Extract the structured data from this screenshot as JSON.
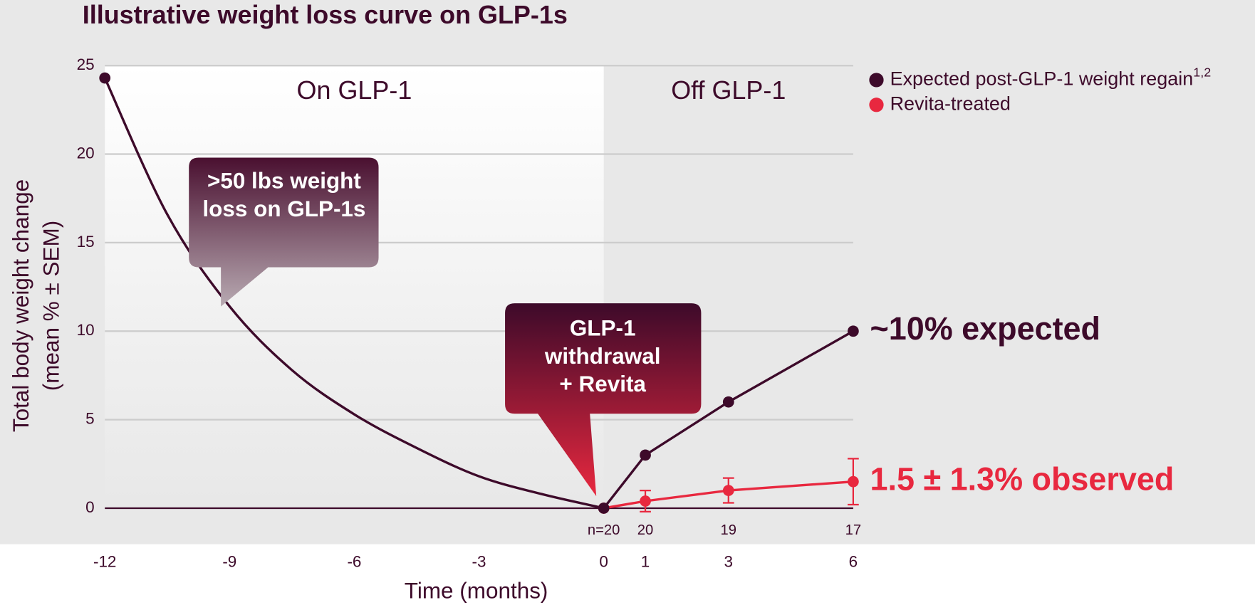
{
  "chart_data": {
    "type": "line",
    "title": "Illustrative weight loss curve on GLP-1s",
    "x_label": "Time (months)",
    "y_label": [
      "Total body weight change",
      "(mean % ± SEM)"
    ],
    "xlim": [
      -12,
      6
    ],
    "xticks": [
      -12,
      -9,
      -6,
      -3,
      0,
      1,
      3,
      6
    ],
    "ylim": [
      0,
      25
    ],
    "yticks": [
      0,
      5,
      10,
      15,
      20,
      25
    ],
    "grid": true,
    "regions": [
      {
        "label": "On GLP-1",
        "from": -12,
        "to": 0
      },
      {
        "label": "Off GLP-1",
        "from": 0,
        "to": 6
      }
    ],
    "curve": {
      "color": "#3d0a2a",
      "x": [
        -12,
        -10.5,
        -9,
        -7.5,
        -6,
        -4.5,
        -3,
        -1.5,
        0
      ],
      "values": [
        24.3,
        16.6,
        11.4,
        7.8,
        5.3,
        3.4,
        1.8,
        0.8,
        0
      ]
    },
    "series": [
      {
        "name": "Expected post-GLP-1 weight regain",
        "name_sup": "1,2",
        "color": "#3d0a2a",
        "x": [
          0,
          1,
          3,
          6
        ],
        "values": [
          0,
          3,
          6,
          10
        ]
      },
      {
        "name": "Revita-treated",
        "color": "#e8283f",
        "x": [
          0,
          1,
          3,
          6
        ],
        "values": [
          0,
          0.4,
          1.0,
          1.5
        ],
        "errors": [
          null,
          0.6,
          0.7,
          1.3
        ]
      }
    ],
    "n_labels": {
      "x": [
        0,
        1,
        3,
        6
      ],
      "labels": [
        "n=20",
        "20",
        "19",
        "17"
      ]
    },
    "end_annotations": [
      "~10% expected",
      "1.5 ± 1.3% observed"
    ],
    "callouts": [
      {
        "lines": [
          ">50 lbs weight",
          "loss on GLP-1s"
        ]
      },
      {
        "lines": [
          "GLP-1",
          "withdrawal",
          "+ Revita"
        ]
      }
    ],
    "legend": "top-right"
  }
}
